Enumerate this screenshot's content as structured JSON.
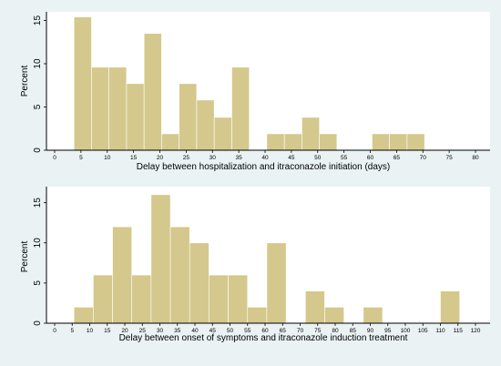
{
  "colors": {
    "background": "#eaf2f3",
    "plot_background": "#ffffff",
    "bar_fill": "#d4c88c",
    "bar_stroke": "#ffffff",
    "axis": "#000000"
  },
  "chart_data": [
    {
      "type": "bar",
      "subtype": "histogram",
      "xlabel": "Delay between hospitalization and itraconazole initiation (days)",
      "ylabel": "Percent",
      "xlim": [
        0,
        80
      ],
      "ylim": [
        0,
        16
      ],
      "x_ticks": [
        0,
        5,
        10,
        15,
        20,
        25,
        30,
        35,
        40,
        45,
        50,
        55,
        60,
        65,
        70,
        75,
        80
      ],
      "y_ticks": [
        0,
        5,
        10,
        15
      ],
      "grid": false,
      "bin_width": 3.33,
      "bins": [
        {
          "start": 3.67,
          "value": 15.4
        },
        {
          "start": 7.0,
          "value": 9.6
        },
        {
          "start": 10.33,
          "value": 9.6
        },
        {
          "start": 13.67,
          "value": 7.7
        },
        {
          "start": 17.0,
          "value": 13.5
        },
        {
          "start": 20.33,
          "value": 1.9
        },
        {
          "start": 23.67,
          "value": 7.7
        },
        {
          "start": 27.0,
          "value": 5.8
        },
        {
          "start": 30.33,
          "value": 3.8
        },
        {
          "start": 33.67,
          "value": 9.6
        },
        {
          "start": 40.33,
          "value": 1.9
        },
        {
          "start": 43.67,
          "value": 1.9
        },
        {
          "start": 47.0,
          "value": 3.8
        },
        {
          "start": 50.33,
          "value": 1.9
        },
        {
          "start": 60.33,
          "value": 1.9
        },
        {
          "start": 63.67,
          "value": 1.9
        },
        {
          "start": 67.0,
          "value": 1.9
        }
      ]
    },
    {
      "type": "bar",
      "subtype": "histogram",
      "xlabel": "Delay between onset of symptoms and itraconazole induction treatment",
      "ylabel": "Percent",
      "xlim": [
        0,
        120
      ],
      "ylim": [
        0,
        17
      ],
      "x_ticks": [
        0,
        5,
        10,
        15,
        20,
        25,
        30,
        35,
        40,
        45,
        50,
        55,
        60,
        65,
        70,
        75,
        80,
        85,
        90,
        95,
        100,
        105,
        110,
        115,
        120
      ],
      "y_ticks": [
        0,
        5,
        10,
        15
      ],
      "grid": false,
      "bin_width": 5.5,
      "bins": [
        {
          "start": 5.5,
          "value": 2
        },
        {
          "start": 11.0,
          "value": 6
        },
        {
          "start": 16.5,
          "value": 12
        },
        {
          "start": 22.0,
          "value": 6
        },
        {
          "start": 27.5,
          "value": 16
        },
        {
          "start": 33.0,
          "value": 12
        },
        {
          "start": 38.5,
          "value": 10
        },
        {
          "start": 44.0,
          "value": 6
        },
        {
          "start": 49.5,
          "value": 6
        },
        {
          "start": 55.0,
          "value": 2
        },
        {
          "start": 60.5,
          "value": 10
        },
        {
          "start": 71.5,
          "value": 4
        },
        {
          "start": 77.0,
          "value": 2
        },
        {
          "start": 88.0,
          "value": 2
        },
        {
          "start": 110.0,
          "value": 4
        }
      ]
    }
  ]
}
